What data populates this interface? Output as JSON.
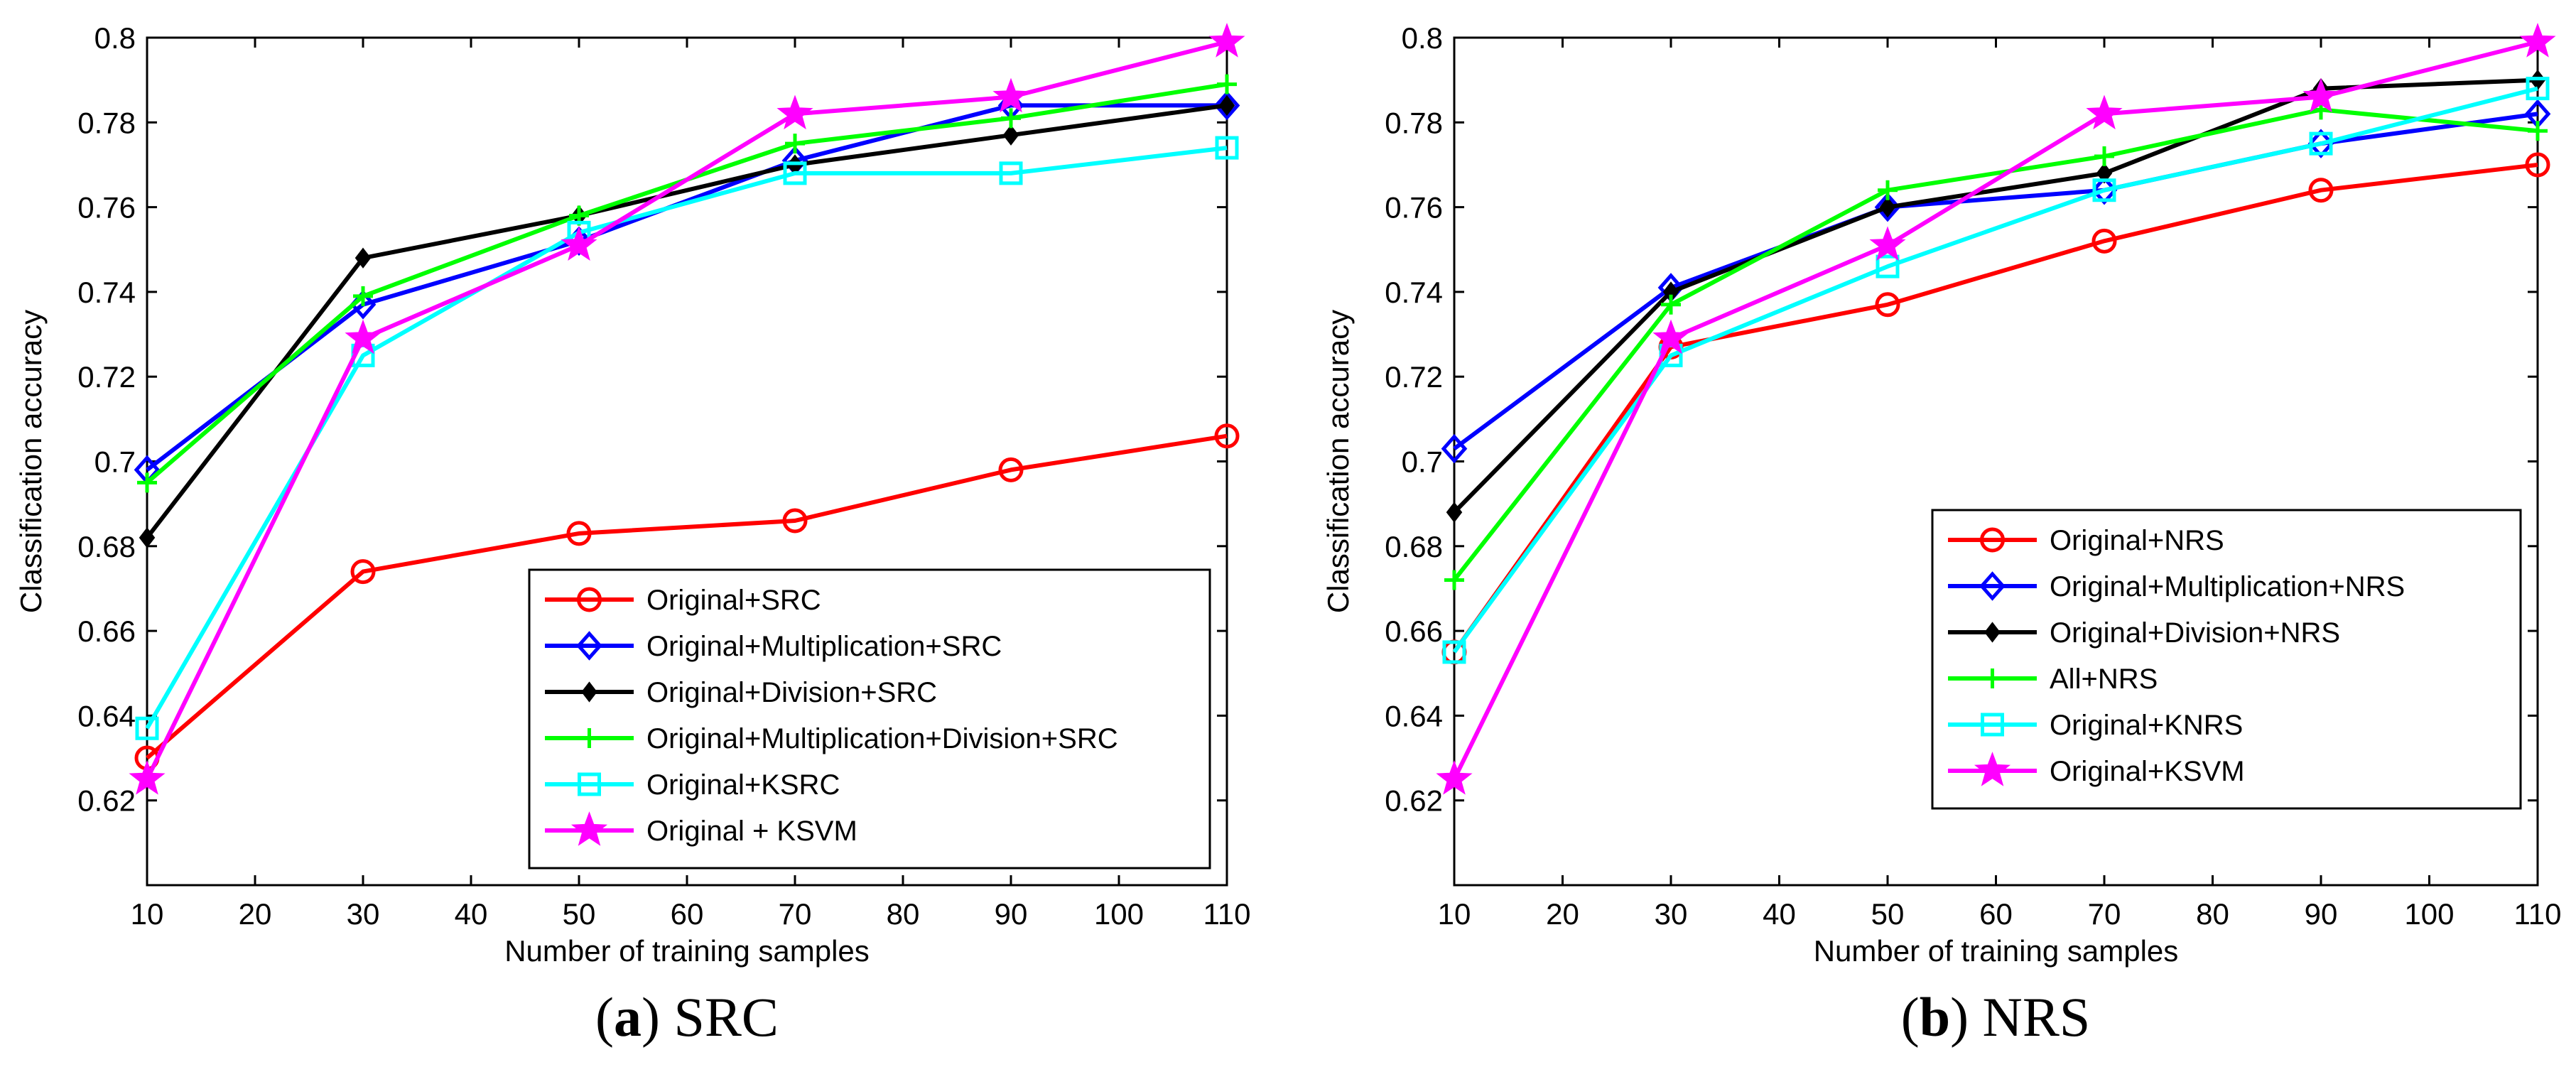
{
  "chart_data": [
    {
      "type": "line",
      "caption_letter": "a",
      "caption_title": "SRC",
      "xlabel": "Number of training samples",
      "ylabel": "Classification accuracy",
      "xlim": [
        10,
        110
      ],
      "ylim": [
        0.6,
        0.8
      ],
      "xticks": [
        10,
        20,
        30,
        40,
        50,
        60,
        70,
        80,
        90,
        100,
        110
      ],
      "yticks": [
        0.62,
        0.64,
        0.66,
        0.68,
        0.7,
        0.72,
        0.74,
        0.76,
        0.78,
        0.8
      ],
      "ytick_labels": [
        "0.62",
        "0.64",
        "0.66",
        "0.68",
        "0.7",
        "0.72",
        "0.74",
        "0.76",
        "0.78",
        "0.8"
      ],
      "legend_position": "lower-right",
      "x": [
        10,
        30,
        50,
        70,
        90,
        110
      ],
      "series": [
        {
          "name": "Original+SRC",
          "color": "#ff0000",
          "marker": "circle",
          "values": [
            0.63,
            0.674,
            0.683,
            0.686,
            0.698,
            0.706
          ]
        },
        {
          "name": "Original+Multiplication+SRC",
          "color": "#0000ff",
          "marker": "diamond",
          "values": [
            0.698,
            0.737,
            0.752,
            0.771,
            0.784,
            0.784
          ]
        },
        {
          "name": "Original+Division+SRC",
          "color": "#000000",
          "marker": "filled-diamond",
          "values": [
            0.682,
            0.748,
            0.758,
            0.77,
            0.777,
            0.784
          ]
        },
        {
          "name": "Original+Multiplication+Division+SRC",
          "color": "#00ff00",
          "marker": "plus",
          "values": [
            0.695,
            0.739,
            0.758,
            0.775,
            0.781,
            0.789
          ]
        },
        {
          "name": "Original+KSRC",
          "color": "#00ffff",
          "marker": "square",
          "values": [
            0.637,
            0.725,
            0.754,
            0.768,
            0.768,
            0.774
          ]
        },
        {
          "name": "Original + KSVM",
          "color": "#ff00ff",
          "marker": "star",
          "values": [
            0.625,
            0.729,
            0.751,
            0.782,
            0.786,
            0.799
          ]
        }
      ]
    },
    {
      "type": "line",
      "caption_letter": "b",
      "caption_title": "NRS",
      "xlabel": "Number of training samples",
      "ylabel": "Classification accuracy",
      "xlim": [
        10,
        110
      ],
      "ylim": [
        0.6,
        0.8
      ],
      "xticks": [
        10,
        20,
        30,
        40,
        50,
        60,
        70,
        80,
        90,
        100,
        110
      ],
      "yticks": [
        0.62,
        0.64,
        0.66,
        0.68,
        0.7,
        0.72,
        0.74,
        0.76,
        0.78,
        0.8
      ],
      "ytick_labels": [
        "0.62",
        "0.64",
        "0.66",
        "0.68",
        "0.7",
        "0.72",
        "0.74",
        "0.76",
        "0.78",
        "0.8"
      ],
      "legend_position": "lower-right",
      "x": [
        10,
        30,
        50,
        70,
        90,
        110
      ],
      "series": [
        {
          "name": "Original+NRS",
          "color": "#ff0000",
          "marker": "circle",
          "values": [
            0.655,
            0.727,
            0.737,
            0.752,
            0.764,
            0.77
          ]
        },
        {
          "name": "Original+Multiplication+NRS",
          "color": "#0000ff",
          "marker": "diamond",
          "values": [
            0.703,
            0.741,
            0.76,
            0.764,
            0.775,
            0.782
          ]
        },
        {
          "name": "Original+Division+NRS",
          "color": "#000000",
          "marker": "filled-diamond",
          "values": [
            0.688,
            0.74,
            0.76,
            0.768,
            0.788,
            0.79
          ]
        },
        {
          "name": "All+NRS",
          "color": "#00ff00",
          "marker": "plus",
          "values": [
            0.672,
            0.737,
            0.764,
            0.772,
            0.783,
            0.778
          ]
        },
        {
          "name": "Original+KNRS",
          "color": "#00ffff",
          "marker": "square",
          "values": [
            0.655,
            0.725,
            0.746,
            0.764,
            0.775,
            0.788
          ]
        },
        {
          "name": "Original+KSVM",
          "color": "#ff00ff",
          "marker": "star",
          "values": [
            0.625,
            0.729,
            0.751,
            0.782,
            0.786,
            0.799
          ]
        }
      ]
    }
  ]
}
